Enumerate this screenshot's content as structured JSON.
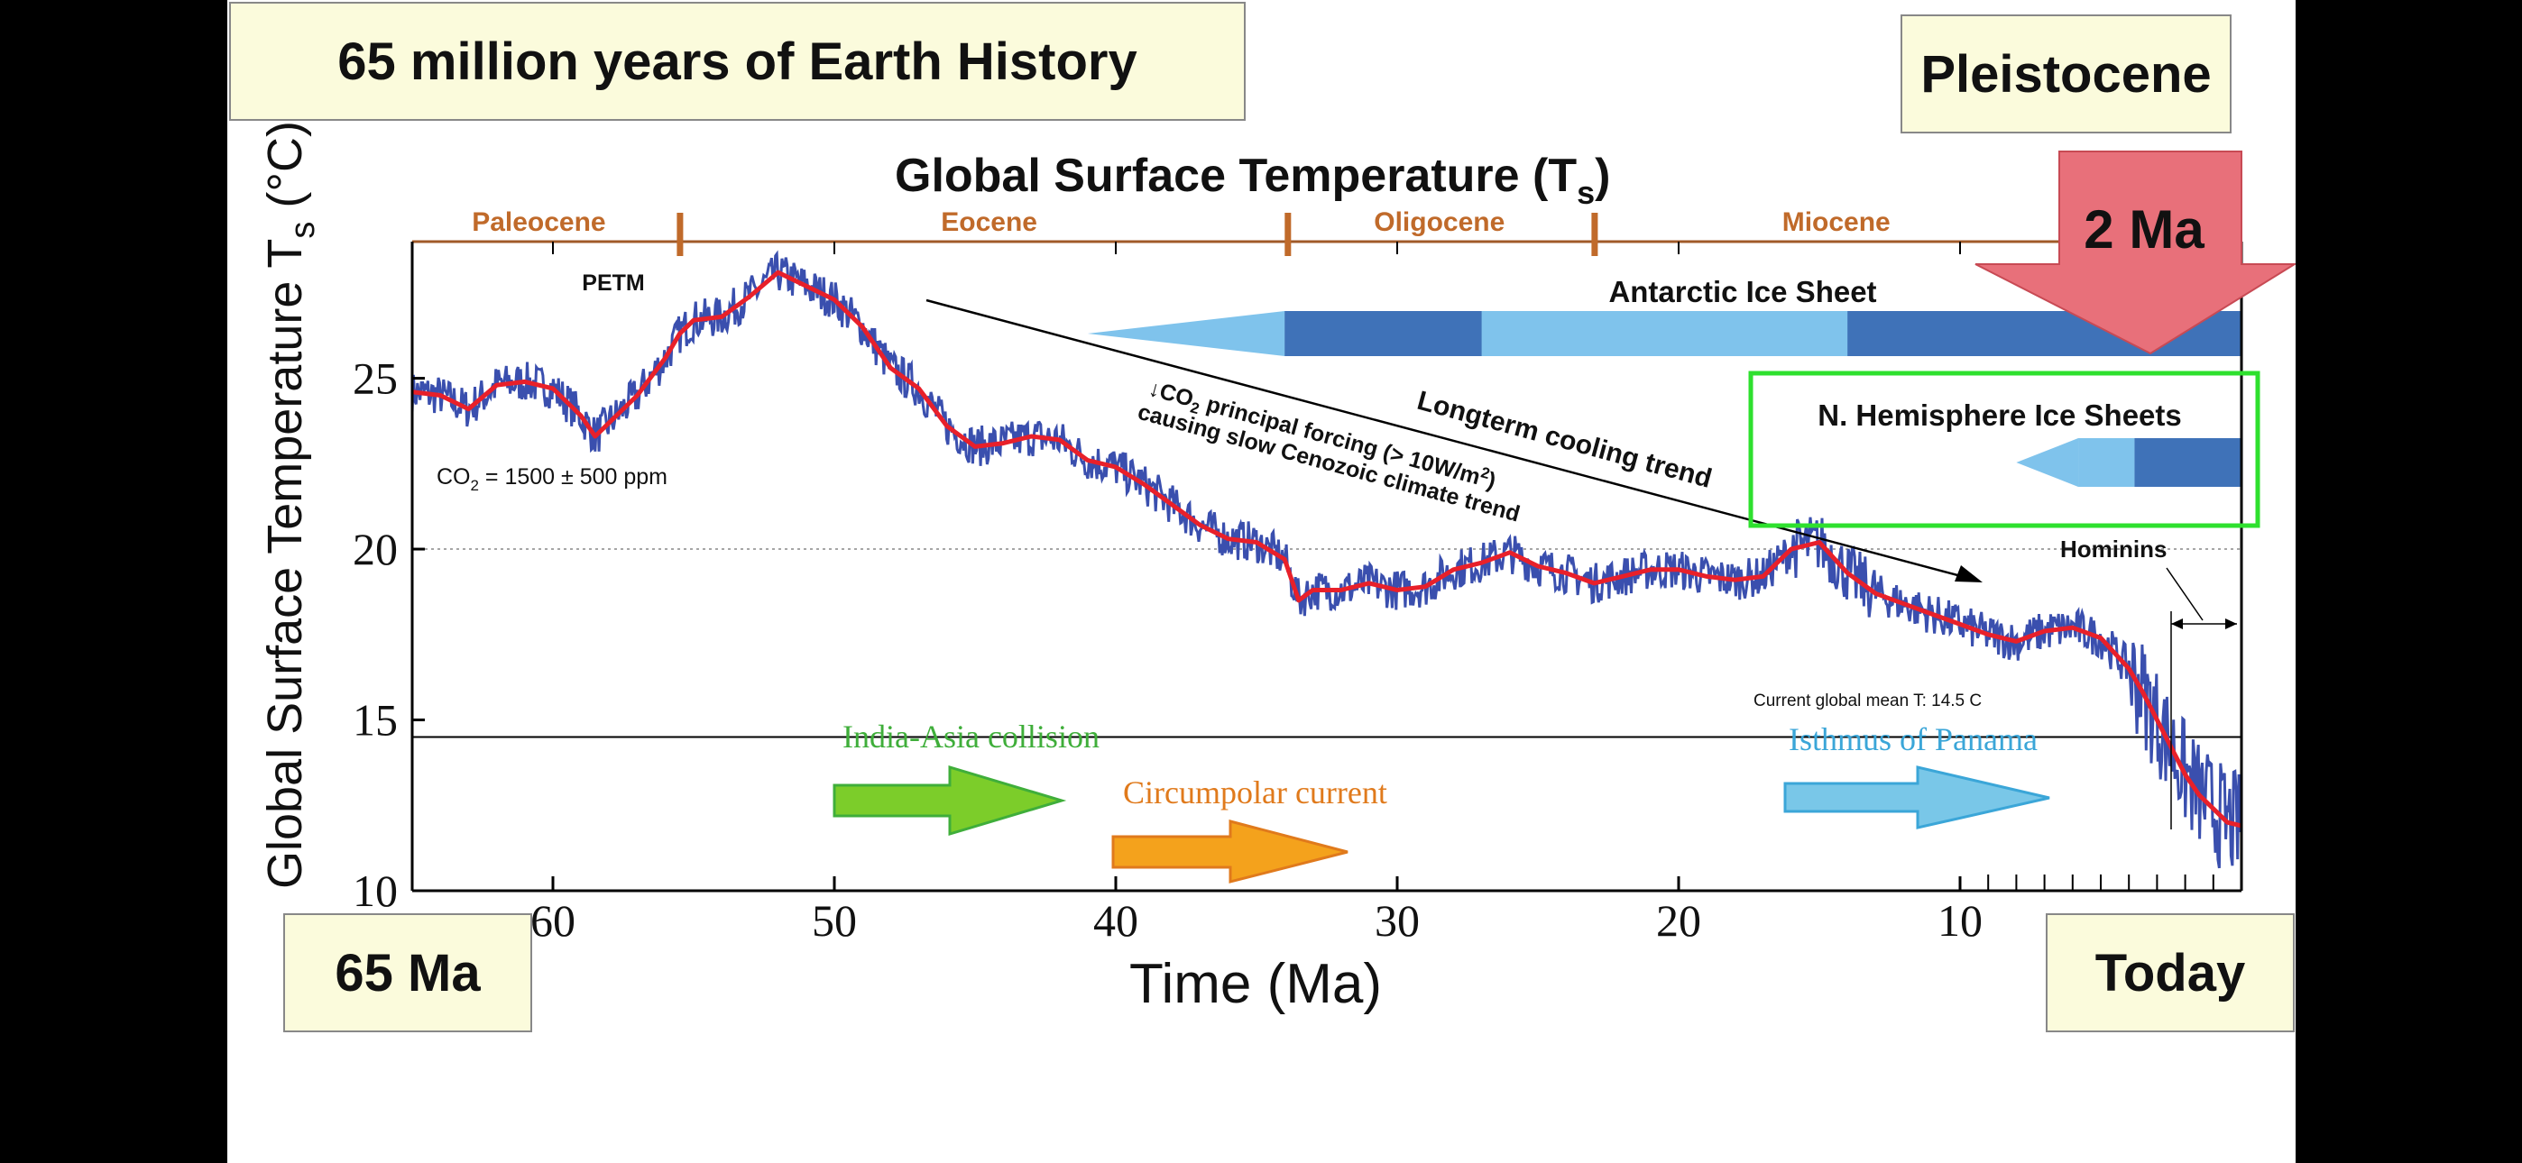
{
  "slide": {
    "title": "65 million years of Earth History",
    "epoch_label": "Pleistocene",
    "start_label": "65 Ma",
    "end_label": "Today",
    "arrow_label": "2 Ma"
  },
  "colors": {
    "raw_series": "#3a4fae",
    "smooth_series": "#e8202a",
    "epoch_text": "#c06a2a",
    "antarctic_light": "#7fc3ec",
    "antarctic_dark": "#3f72b8",
    "nh_box": "#2ee02e",
    "arrow_fill": "#e8707a",
    "india_arrow": "#7ccd2a",
    "circumpolar_arrow": "#f4a21c",
    "panama_arrow": "#79c7e8"
  },
  "chart_data": {
    "type": "line",
    "title_main": "Global Surface Temperature (T",
    "title_sub": "s",
    "title_end": ")",
    "xlabel": "Time (Ma)",
    "ylabel_text": "Global Surface Temperature",
    "ylabel_sym": "T",
    "ylabel_sub": "s",
    "ylabel_unit": "(°C)",
    "xlim": [
      65,
      0
    ],
    "ylim": [
      10,
      29
    ],
    "x_ticks": [
      60,
      50,
      40,
      30,
      20,
      10
    ],
    "y_ticks": [
      10,
      15,
      20,
      25
    ],
    "epochs": [
      {
        "name": "Paleocene",
        "center": 60.5
      },
      {
        "name": "Eocene",
        "center": 44.5
      },
      {
        "name": "Oligocene",
        "center": 28.5
      },
      {
        "name": "Miocene",
        "center": 14.4
      }
    ],
    "epoch_boundaries": [
      55.5,
      33.9,
      23.0
    ],
    "reference_lines": [
      {
        "y": 20,
        "style": "dotted"
      },
      {
        "y": 14.5,
        "style": "solid",
        "label": "Current global mean T: 14.5 C"
      }
    ],
    "series": [
      {
        "role": "smoothed",
        "x": [
          65,
          64,
          63,
          62,
          61,
          60,
          59,
          58.5,
          58,
          57,
          56,
          55.5,
          55,
          54,
          53,
          52,
          51,
          50,
          49,
          48,
          47,
          46,
          45,
          44,
          43,
          42,
          41,
          40,
          39,
          38,
          37,
          36,
          35,
          34,
          33.5,
          33,
          32,
          31,
          30,
          29,
          28,
          27,
          26,
          25,
          24,
          23,
          22,
          21,
          20,
          19,
          18,
          17,
          16,
          15,
          14,
          13,
          12,
          11,
          10,
          9,
          8,
          7,
          6,
          5,
          4,
          3.5,
          3,
          2.5,
          2,
          1.5,
          1,
          0.5,
          0
        ],
        "y": [
          24.6,
          24.5,
          24.1,
          24.8,
          24.9,
          24.7,
          23.9,
          23.3,
          23.7,
          24.5,
          25.6,
          26.3,
          26.7,
          26.8,
          27.4,
          28.1,
          27.7,
          27.3,
          26.5,
          25.3,
          24.7,
          23.6,
          23.0,
          23.1,
          23.3,
          23.2,
          22.6,
          22.4,
          21.9,
          21.3,
          20.7,
          20.3,
          20.2,
          19.7,
          18.5,
          18.8,
          18.8,
          19.0,
          18.8,
          18.9,
          19.4,
          19.6,
          19.9,
          19.5,
          19.3,
          19.0,
          19.2,
          19.4,
          19.4,
          19.2,
          19.1,
          19.2,
          20.0,
          20.2,
          19.3,
          18.7,
          18.4,
          18.1,
          17.8,
          17.5,
          17.3,
          17.6,
          17.7,
          17.4,
          16.5,
          15.8,
          15.0,
          14.2,
          13.4,
          12.8,
          12.4,
          12.0,
          11.9
        ]
      }
    ],
    "annotations": {
      "petm": "PETM",
      "co2": "CO",
      "co2_sub": "2",
      "co2_value": " = 1500 ± 500 ppm",
      "cooling": "Longterm cooling trend",
      "forcing_line1_pre": "↓CO",
      "forcing_line1_sub": "2",
      "forcing_line1_post": " principal forcing (> 10W/m",
      "forcing_line1_sup": "2",
      "forcing_line1_end": ")",
      "forcing_line2": "causing slow Cenozoic climate trend",
      "antarctic": "Antarctic Ice Sheet",
      "nh": "N. Hemisphere Ice Sheets",
      "hominins": "Hominins",
      "india_asia": "India-Asia collision",
      "circumpolar": "Circumpolar current",
      "panama": "Isthmus of Panama"
    }
  }
}
